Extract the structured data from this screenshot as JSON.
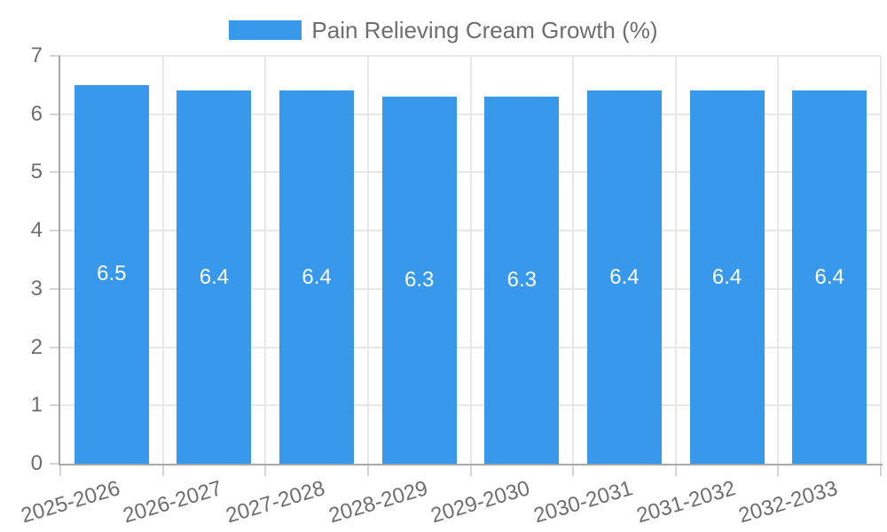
{
  "legend": {
    "label": "Pain Relieving Cream Growth (%)"
  },
  "colors": {
    "bar": "#3898EC",
    "axis": "#a8a8a8",
    "grid": "#e7e7e7",
    "tick": "#d4d4d4",
    "text": "#6e6e6e",
    "bar_label": "#ffffff",
    "background": "#ffffff"
  },
  "chart_data": {
    "type": "bar",
    "title": "Pain Relieving Cream Growth (%)",
    "categories": [
      "2025-2026",
      "2026-2027",
      "2027-2028",
      "2028-2029",
      "2029-2030",
      "2030-2031",
      "2031-2032",
      "2032-2033"
    ],
    "values": [
      6.5,
      6.4,
      6.4,
      6.3,
      6.3,
      6.4,
      6.4,
      6.4
    ],
    "bar_labels": [
      "6.5",
      "6.4",
      "6.4",
      "6.3",
      "6.3",
      "6.4",
      "6.4",
      "6.4"
    ],
    "xlabel": "",
    "ylabel": "",
    "ylim": [
      0,
      7
    ],
    "yticks": [
      0,
      1,
      2,
      3,
      4,
      5,
      6,
      7
    ],
    "grid": true,
    "legend_position": "top",
    "value_labels_position": "center-of-bar",
    "x_label_rotation_deg": -16.5
  }
}
